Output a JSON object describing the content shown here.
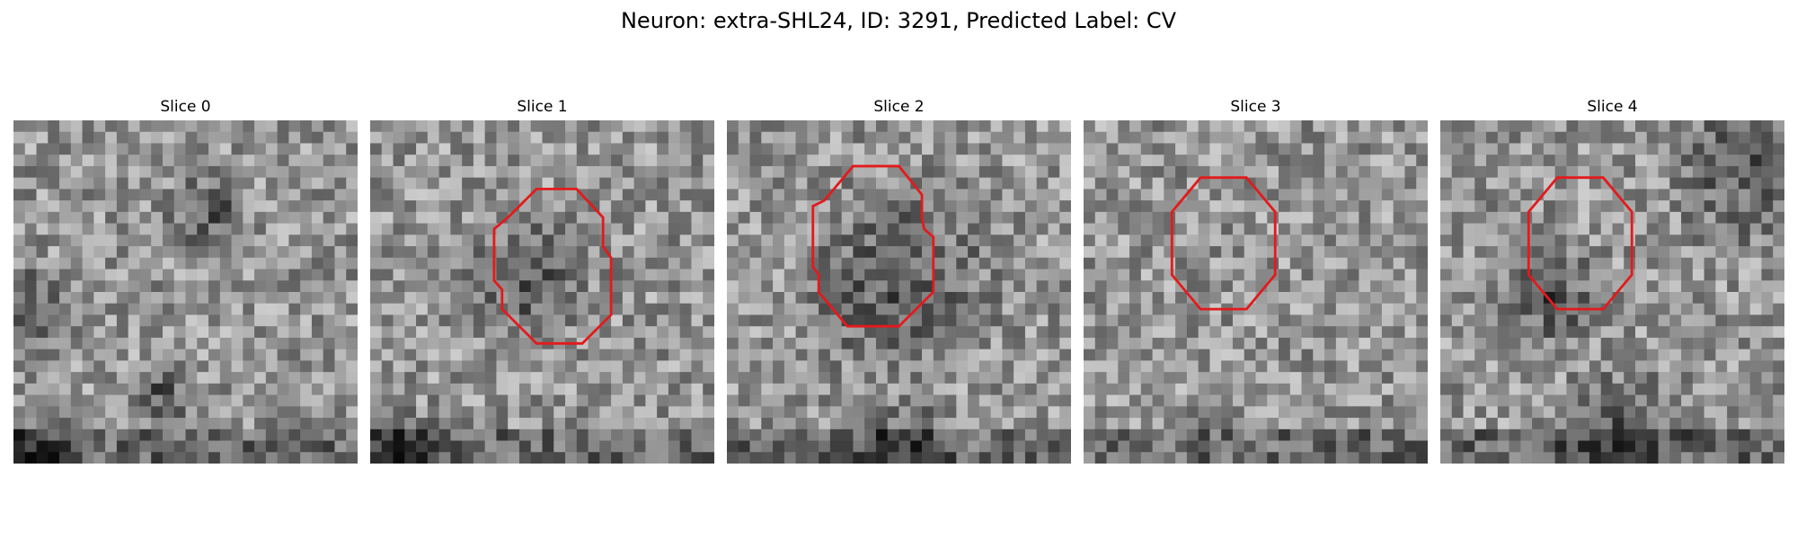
{
  "figure": {
    "title": "Neuron: extra-SHL24, ID: 3291, Predicted Label: CV"
  },
  "panels": [
    {
      "title": "Slice 0",
      "contour": false,
      "seed": 11,
      "dark_regions": [
        [
          0.05,
          0.55,
          0.12
        ],
        [
          0.55,
          0.25,
          0.1
        ],
        [
          0.42,
          0.78,
          0.08
        ],
        [
          0.05,
          0.95,
          0.1
        ]
      ]
    },
    {
      "title": "Slice 1",
      "contour": true,
      "seed": 23,
      "dark_regions": [
        [
          0.45,
          0.45,
          0.14
        ],
        [
          0.1,
          0.95,
          0.1
        ]
      ]
    },
    {
      "title": "Slice 2",
      "contour": true,
      "seed": 37,
      "dark_regions": [
        [
          0.48,
          0.45,
          0.22
        ],
        [
          0.5,
          0.95,
          0.12
        ]
      ]
    },
    {
      "title": "Slice 3",
      "contour": true,
      "seed": 41,
      "dark_regions": []
    },
    {
      "title": "Slice 4",
      "contour": true,
      "seed": 53,
      "dark_regions": [
        [
          0.88,
          0.12,
          0.18
        ],
        [
          0.3,
          0.5,
          0.12
        ],
        [
          0.5,
          0.9,
          0.15
        ]
      ]
    }
  ],
  "colors": {
    "contour": "#e31a1c"
  }
}
